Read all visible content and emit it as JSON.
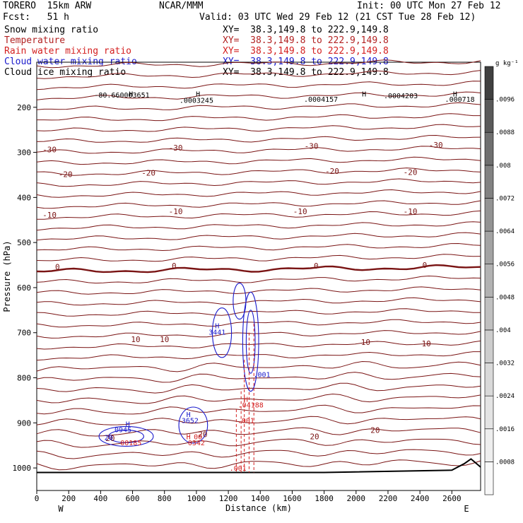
{
  "header": {
    "model": "TORERO  15km ARW",
    "org": "NCAR/MMM",
    "init": "Init: 00 UTC Mon 27 Feb 12",
    "fcst": "Fcst:   51 h",
    "valid": "Valid: 03 UTC Wed 29 Feb 12 (21 CST Tue 28 Feb 12)"
  },
  "fields": [
    {
      "name": "Snow mixing ratio",
      "color": "#000000",
      "xy": "XY=  38.3,149.8 to 222.9,149.8"
    },
    {
      "name": "Temperature",
      "color": "#b22222",
      "xy": "XY=  38.3,149.8 to 222.9,149.8"
    },
    {
      "name": "Rain water mixing ratio",
      "color": "#d42020",
      "xy": "XY=  38.3,149.8 to 222.9,149.8"
    },
    {
      "name": "Cloud water mixing ratio",
      "color": "#1a1acc",
      "xy": "XY=  38.3,149.8 to 222.9,149.8"
    },
    {
      "name": "Cloud ice mixing ratio",
      "color": "#000000",
      "xy": "XY=  38.3,149.8 to 222.9,149.8"
    }
  ],
  "chart_data": {
    "type": "contour-cross-section",
    "xlabel": "Distance (km)",
    "ylabel": "Pressure (hPa)",
    "xlim": [
      0,
      2780
    ],
    "ylim": [
      1050,
      100
    ],
    "x_ticks": [
      0,
      200,
      400,
      600,
      800,
      1000,
      1200,
      1400,
      1600,
      1800,
      2000,
      2200,
      2400,
      2600
    ],
    "y_ticks": [
      200,
      300,
      400,
      500,
      600,
      700,
      800,
      900,
      1000
    ],
    "ends": {
      "left": "W",
      "right": "E"
    },
    "colorbar": {
      "unit": "g kg⁻¹",
      "ticks": [
        ".0008",
        ".0016",
        ".0024",
        ".0032",
        ".004",
        ".0048",
        ".0056",
        ".0064",
        ".0072",
        ".008",
        ".0088",
        ".0096"
      ],
      "shades": [
        "#f8f8f8",
        "#eeeeee",
        "#e4e4e4",
        "#d9d9d9",
        "#cdcdcd",
        "#c0c0c0",
        "#b2b2b2",
        "#a3a3a3",
        "#939393",
        "#828282",
        "#6f6f6f",
        "#5a5a5a",
        "#404040"
      ]
    },
    "temperature_labels": [
      {
        "x": 80,
        "p": 300,
        "text": "-30"
      },
      {
        "x": 870,
        "p": 296,
        "text": "-30"
      },
      {
        "x": 1720,
        "p": 292,
        "text": "-30"
      },
      {
        "x": 2500,
        "p": 290,
        "text": "-30"
      },
      {
        "x": 180,
        "p": 355,
        "text": "-20"
      },
      {
        "x": 700,
        "p": 352,
        "text": "-20"
      },
      {
        "x": 1850,
        "p": 348,
        "text": "-20"
      },
      {
        "x": 2340,
        "p": 350,
        "text": "-20"
      },
      {
        "x": 80,
        "p": 445,
        "text": "-10"
      },
      {
        "x": 870,
        "p": 437,
        "text": "-10"
      },
      {
        "x": 1650,
        "p": 437,
        "text": "-10"
      },
      {
        "x": 2340,
        "p": 437,
        "text": "-10"
      },
      {
        "x": 130,
        "p": 560,
        "text": "0"
      },
      {
        "x": 860,
        "p": 558,
        "text": "0"
      },
      {
        "x": 1750,
        "p": 558,
        "text": "0"
      },
      {
        "x": 2430,
        "p": 556,
        "text": "0"
      },
      {
        "x": 620,
        "p": 721,
        "text": "10"
      },
      {
        "x": 800,
        "p": 721,
        "text": "10"
      },
      {
        "x": 2060,
        "p": 727,
        "text": "10"
      },
      {
        "x": 2440,
        "p": 730,
        "text": "10"
      },
      {
        "x": 460,
        "p": 940,
        "text": "20"
      },
      {
        "x": 1040,
        "p": 932,
        "text": "20"
      },
      {
        "x": 1740,
        "p": 936,
        "text": "20"
      },
      {
        "x": 2120,
        "p": 922,
        "text": "20"
      }
    ],
    "snow_labels": [
      {
        "x": 440,
        "p": 178,
        "text": "-80.66"
      },
      {
        "x": 600,
        "p": 178,
        "text": ".0003651"
      },
      {
        "x": 1000,
        "p": 190,
        "text": ".0003245"
      },
      {
        "x": 1780,
        "p": 188,
        "text": ".0004157"
      },
      {
        "x": 2280,
        "p": 180,
        "text": ".0004203"
      },
      {
        "x": 2650,
        "p": 188,
        "text": ".000718"
      }
    ],
    "high_markers": [
      {
        "x": 590,
        "p": 176,
        "text": "H"
      },
      {
        "x": 1010,
        "p": 176,
        "text": "H"
      },
      {
        "x": 2050,
        "p": 176,
        "text": "H"
      },
      {
        "x": 2620,
        "p": 176,
        "text": "H"
      }
    ],
    "cloud_water_labels": [
      {
        "x": 570,
        "p": 908,
        "text": "H"
      },
      {
        "x": 540,
        "p": 921,
        "text": "0945"
      },
      {
        "x": 950,
        "p": 887,
        "text": "H"
      },
      {
        "x": 960,
        "p": 900,
        "text": "3652"
      },
      {
        "x": 1130,
        "p": 690,
        "text": "H"
      },
      {
        "x": 1130,
        "p": 704,
        "text": "3441"
      },
      {
        "x": 1410,
        "p": 798,
        "text": ".001"
      },
      {
        "x": 450,
        "p": 938,
        "text": "20"
      }
    ],
    "rain_labels": [
      {
        "x": 590,
        "p": 950,
        "text": "00185"
      },
      {
        "x": 1000,
        "p": 950,
        "text": "0342"
      },
      {
        "x": 950,
        "p": 936,
        "text": "H"
      },
      {
        "x": 1010,
        "p": 936,
        "text": "00"
      },
      {
        "x": 1310,
        "p": 853,
        "text": "H"
      },
      {
        "x": 1340,
        "p": 866,
        "text": ".04188"
      },
      {
        "x": 1310,
        "p": 900,
        "text": ".001"
      },
      {
        "x": 1260,
        "p": 1006,
        "text": ".001"
      }
    ]
  }
}
